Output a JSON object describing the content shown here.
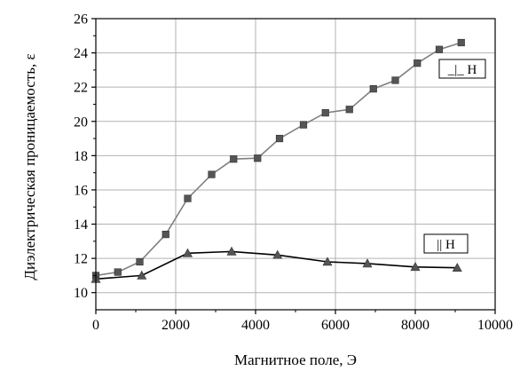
{
  "chart_data": {
    "type": "line",
    "title": "",
    "xlabel": "Магнитное поле, Э",
    "ylabel": "Диэлектрическая проницаемость, ε",
    "xlim": [
      0,
      10000
    ],
    "ylim": [
      9,
      26
    ],
    "xticks": [
      0,
      2000,
      4000,
      6000,
      8000,
      10000
    ],
    "yticks": [
      10,
      12,
      14,
      16,
      18,
      20,
      22,
      24,
      26
    ],
    "grid": true,
    "series": [
      {
        "name": "_|_ H",
        "marker": "square",
        "line_color": "#808080",
        "marker_color": "#555555",
        "legend_position": "upper-right",
        "x": [
          0,
          550,
          1100,
          1750,
          2300,
          2900,
          3450,
          4050,
          4600,
          5200,
          5750,
          6350,
          6950,
          7500,
          8050,
          8600,
          9150
        ],
        "y": [
          11.0,
          11.2,
          11.8,
          13.4,
          15.5,
          16.9,
          17.8,
          17.85,
          19.0,
          19.8,
          20.5,
          20.7,
          21.9,
          22.4,
          23.4,
          24.2,
          24.6
        ]
      },
      {
        "name": "|| H",
        "marker": "triangle",
        "line_color": "#000000",
        "marker_color": "#555555",
        "legend_position": "lower-right",
        "x": [
          0,
          1150,
          2300,
          3400,
          4550,
          5800,
          6800,
          8000,
          9050
        ],
        "y": [
          10.8,
          11.0,
          12.3,
          12.4,
          12.2,
          11.8,
          11.7,
          11.5,
          11.45
        ]
      }
    ]
  }
}
